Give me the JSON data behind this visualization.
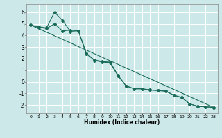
{
  "xlabel": "Humidex (Indice chaleur)",
  "background_color": "#cce8e8",
  "grid_color": "#ffffff",
  "line_color": "#1a6b5a",
  "xlim": [
    -0.5,
    23.5
  ],
  "ylim": [
    -2.7,
    6.7
  ],
  "xticks": [
    0,
    1,
    2,
    3,
    4,
    5,
    6,
    7,
    8,
    9,
    10,
    11,
    12,
    13,
    14,
    15,
    16,
    17,
    18,
    19,
    20,
    21,
    22,
    23
  ],
  "yticks": [
    -2,
    -1,
    0,
    1,
    2,
    3,
    4,
    5,
    6
  ],
  "line1_x": [
    0,
    1,
    2,
    3,
    4,
    5,
    6,
    7,
    8,
    9,
    10,
    11,
    12,
    13,
    14,
    15,
    16,
    17,
    18,
    19,
    20,
    21,
    22,
    23
  ],
  "line1_y": [
    4.9,
    4.7,
    4.6,
    5.0,
    4.4,
    4.45,
    4.4,
    2.5,
    1.85,
    1.7,
    1.65,
    0.5,
    -0.35,
    -0.6,
    -0.6,
    -0.7,
    -0.75,
    -0.8,
    -1.15,
    -1.35,
    -1.9,
    -2.1,
    -2.15,
    -2.2
  ],
  "line2_x": [
    0,
    1,
    2,
    3,
    4,
    5,
    6,
    7,
    8,
    9,
    10,
    11,
    12,
    13,
    14,
    15,
    16,
    17,
    18,
    19,
    20,
    21,
    22,
    23
  ],
  "line2_y": [
    4.9,
    4.75,
    4.65,
    6.0,
    5.3,
    4.35,
    4.4,
    2.4,
    1.9,
    1.75,
    1.7,
    0.55,
    -0.35,
    -0.6,
    -0.6,
    -0.7,
    -0.75,
    -0.8,
    -1.15,
    -1.35,
    -1.9,
    -2.1,
    -2.15,
    -2.2
  ],
  "line3_x": [
    0,
    23
  ],
  "line3_y": [
    4.9,
    -2.2
  ],
  "marker_size": 2.0,
  "linewidth": 0.8
}
